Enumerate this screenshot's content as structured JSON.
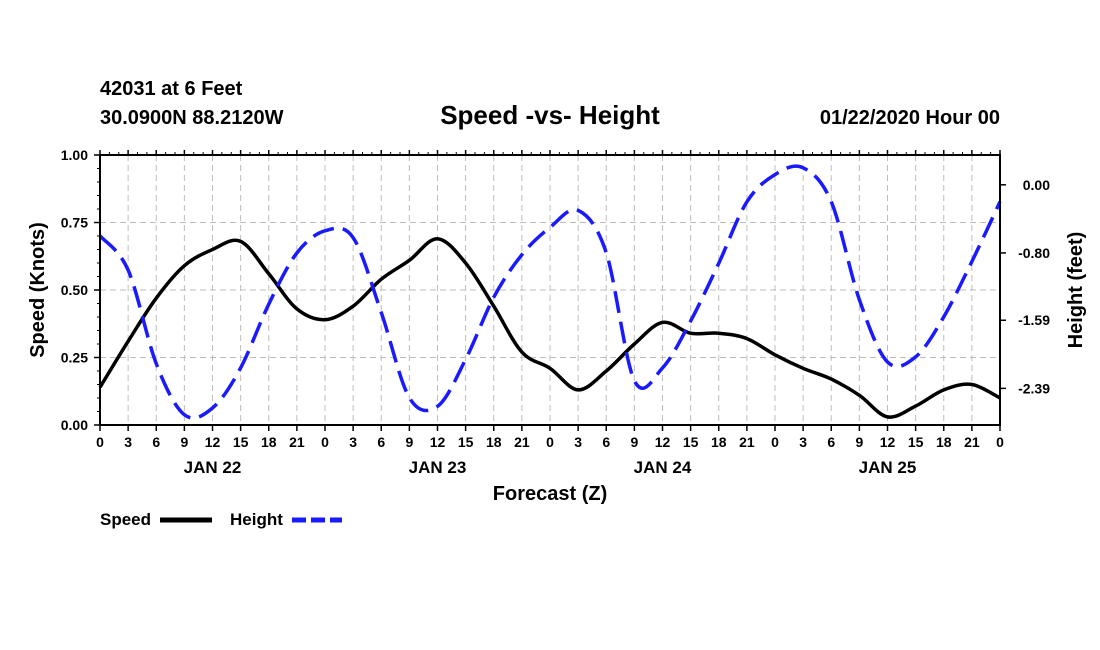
{
  "header": {
    "station": "42031 at 6 Feet",
    "location": "30.0900N 88.2120W",
    "datetime": "01/22/2020 Hour 00"
  },
  "chart_data": {
    "type": "line",
    "title": "Speed -vs- Height",
    "xlabel": "Forecast (Z)",
    "ylabel": "Speed (Knots)",
    "ylabel_right": "Height (feet)",
    "ylim": [
      0,
      1.0
    ],
    "ylim_right": [
      -2.82,
      0.35
    ],
    "yticks": [
      "0.00",
      "0.25",
      "0.50",
      "0.75",
      "1.00"
    ],
    "yticks_right": [
      "0.00",
      "-0.80",
      "-1.59",
      "-2.39"
    ],
    "yticks_right_values": [
      0.0,
      -0.8,
      -1.59,
      -2.39
    ],
    "grid": true,
    "x_hours_range": [
      0,
      96
    ],
    "x_tick_labels": [
      "0",
      "3",
      "6",
      "9",
      "12",
      "15",
      "18",
      "21",
      "0",
      "3",
      "6",
      "9",
      "12",
      "15",
      "18",
      "21",
      "0",
      "3",
      "6",
      "9",
      "12",
      "15",
      "18",
      "21",
      "0",
      "3",
      "6",
      "9",
      "12",
      "15",
      "18",
      "21",
      "0"
    ],
    "day_labels": [
      {
        "label": "JAN 22",
        "hour": 12
      },
      {
        "label": "JAN 23",
        "hour": 36
      },
      {
        "label": "JAN 24",
        "hour": 60
      },
      {
        "label": "JAN 25",
        "hour": 84
      }
    ],
    "series": [
      {
        "name": "Speed",
        "axis": "left",
        "color": "#000000",
        "style": "solid",
        "x": [
          0,
          3,
          6,
          9,
          12,
          15,
          18,
          21,
          24,
          27,
          30,
          33,
          36,
          39,
          42,
          45,
          48,
          51,
          54,
          57,
          60,
          63,
          66,
          69,
          72,
          75,
          78,
          81,
          84,
          87,
          90,
          93,
          96
        ],
        "values": [
          0.14,
          0.31,
          0.47,
          0.59,
          0.65,
          0.68,
          0.56,
          0.43,
          0.39,
          0.44,
          0.54,
          0.61,
          0.69,
          0.6,
          0.44,
          0.27,
          0.21,
          0.13,
          0.2,
          0.3,
          0.38,
          0.34,
          0.34,
          0.32,
          0.26,
          0.21,
          0.17,
          0.11,
          0.03,
          0.07,
          0.13,
          0.15,
          0.1
        ]
      },
      {
        "name": "Height",
        "axis": "right",
        "color": "#1a1aff",
        "style": "dashed",
        "x": [
          0,
          3,
          6,
          9,
          12,
          15,
          18,
          21,
          24,
          27,
          30,
          33,
          36,
          39,
          42,
          45,
          48,
          51,
          54,
          57,
          60,
          63,
          66,
          69,
          72,
          75,
          78,
          81,
          84,
          87,
          90,
          93,
          96
        ],
        "values": [
          -0.6,
          -1.0,
          -2.1,
          -2.7,
          -2.62,
          -2.15,
          -1.4,
          -0.8,
          -0.54,
          -0.62,
          -1.5,
          -2.5,
          -2.6,
          -2.05,
          -1.32,
          -0.82,
          -0.5,
          -0.3,
          -0.8,
          -2.3,
          -2.15,
          -1.6,
          -0.92,
          -0.2,
          0.12,
          0.2,
          -0.2,
          -1.35,
          -2.08,
          -2.02,
          -1.55,
          -0.9,
          -0.2
        ]
      }
    ]
  }
}
